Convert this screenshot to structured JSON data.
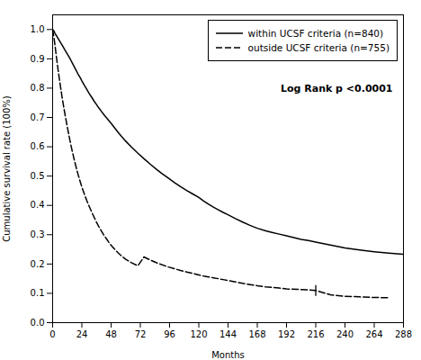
{
  "chart_data": {
    "type": "line",
    "xlabel": "Months",
    "ylabel": "Cumulative survival rate (100%)",
    "xlim": [
      0,
      288
    ],
    "ylim": [
      0.0,
      1.05
    ],
    "xticks": [
      0,
      24,
      48,
      72,
      96,
      120,
      144,
      168,
      192,
      216,
      240,
      264,
      288
    ],
    "yticks": [
      {
        "value": 0.0,
        "label": "0.0"
      },
      0.1,
      0.2,
      0.3,
      0.4,
      0.5,
      0.6,
      0.7,
      0.8,
      0.9,
      {
        "value": 1.0,
        "label": "1.0"
      }
    ],
    "legend": "upper right",
    "series": [
      {
        "name": "within UCSF criteria (n=840)",
        "color": "#000000",
        "line_style": "solid",
        "x": [
          0,
          1,
          2,
          3,
          4,
          5,
          6,
          7,
          8,
          9,
          10,
          11,
          12,
          13,
          14,
          15,
          16,
          17,
          18,
          19,
          20,
          21,
          22,
          23,
          24,
          26,
          28,
          30,
          32,
          34,
          36,
          38,
          40,
          42,
          44,
          46,
          48,
          51,
          54,
          57,
          60,
          65,
          70,
          75,
          80,
          85,
          90,
          95,
          100,
          105,
          110,
          115,
          120,
          124,
          128,
          132,
          136,
          140,
          144,
          150,
          156,
          162,
          168,
          175,
          180,
          186,
          192,
          198,
          204,
          210,
          216,
          228,
          240,
          252,
          264,
          276,
          288
        ],
        "values": [
          1.0,
          0.995,
          0.987,
          0.98,
          0.973,
          0.966,
          0.959,
          0.952,
          0.945,
          0.938,
          0.931,
          0.924,
          0.917,
          0.91,
          0.903,
          0.895,
          0.887,
          0.879,
          0.871,
          0.863,
          0.855,
          0.847,
          0.84,
          0.833,
          0.825,
          0.81,
          0.796,
          0.782,
          0.769,
          0.756,
          0.744,
          0.732,
          0.721,
          0.71,
          0.7,
          0.69,
          0.68,
          0.664,
          0.648,
          0.633,
          0.619,
          0.598,
          0.578,
          0.559,
          0.541,
          0.524,
          0.508,
          0.493,
          0.478,
          0.464,
          0.451,
          0.439,
          0.427,
          0.415,
          0.404,
          0.394,
          0.385,
          0.376,
          0.368,
          0.355,
          0.343,
          0.332,
          0.322,
          0.313,
          0.308,
          0.302,
          0.296,
          0.29,
          0.284,
          0.28,
          0.275,
          0.265,
          0.255,
          0.248,
          0.242,
          0.237,
          0.233
        ]
      },
      {
        "name": "outside UCSF criteria (n=755)",
        "color": "#000000",
        "line_style": "dashed",
        "x": [
          0,
          1,
          2,
          3,
          4,
          5,
          6,
          7,
          8,
          9,
          10,
          11,
          12,
          13,
          14,
          15,
          16,
          17,
          18,
          19,
          20,
          21,
          22,
          23,
          24,
          26,
          28,
          30,
          32,
          34,
          36,
          38,
          40,
          42,
          44,
          46,
          48,
          51,
          54,
          57,
          60,
          65,
          70,
          75,
          80,
          85,
          90,
          95,
          100,
          105,
          110,
          115,
          120,
          124,
          128,
          132,
          136,
          140,
          144,
          150,
          156,
          162,
          168,
          175,
          180,
          186,
          192,
          204,
          216,
          228,
          240,
          252,
          264,
          276
        ],
        "values": [
          1.0,
          0.975,
          0.945,
          0.91,
          0.878,
          0.847,
          0.818,
          0.79,
          0.763,
          0.738,
          0.714,
          0.691,
          0.669,
          0.647,
          0.626,
          0.606,
          0.587,
          0.569,
          0.551,
          0.535,
          0.519,
          0.504,
          0.49,
          0.476,
          0.463,
          0.439,
          0.417,
          0.397,
          0.378,
          0.36,
          0.343,
          0.327,
          0.313,
          0.299,
          0.287,
          0.275,
          0.264,
          0.25,
          0.237,
          0.226,
          0.216,
          0.204,
          0.194,
          0.224,
          0.214,
          0.205,
          0.197,
          0.19,
          0.184,
          0.178,
          0.173,
          0.168,
          0.163,
          0.159,
          0.156,
          0.153,
          0.15,
          0.147,
          0.144,
          0.139,
          0.134,
          0.13,
          0.126,
          0.122,
          0.12,
          0.118,
          0.115,
          0.113,
          0.11,
          0.095,
          0.09,
          0.088,
          0.086,
          0.085
        ],
        "censor_marks": [
          {
            "x": 216,
            "y": 0.11
          }
        ]
      }
    ],
    "annotations": [
      {
        "text": "Log Rank p <0.0001"
      }
    ]
  }
}
